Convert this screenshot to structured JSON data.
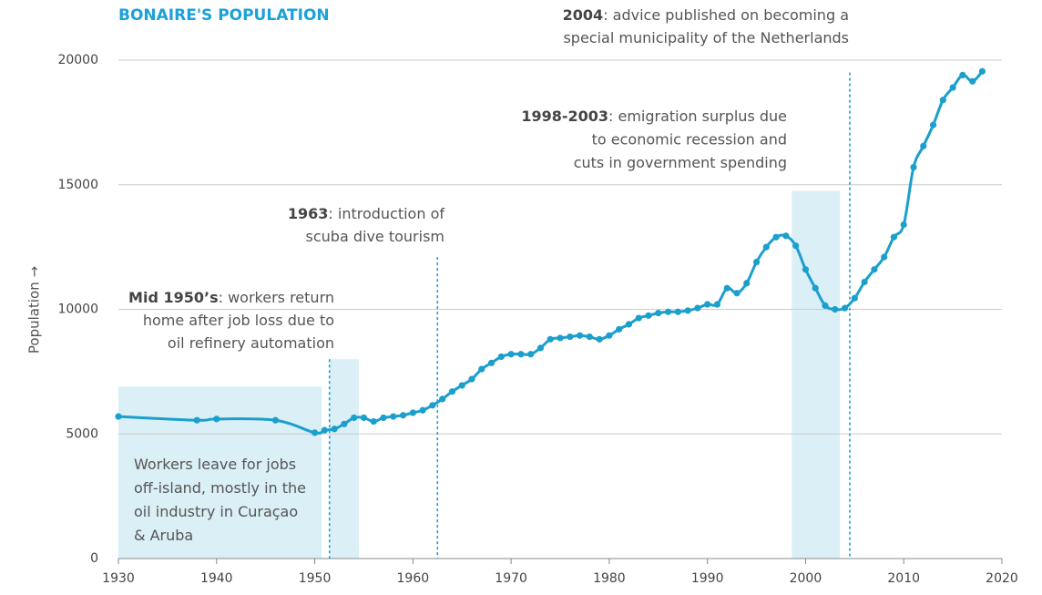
{
  "chart_data": {
    "type": "line",
    "title": "BONAIRE'S POPULATION",
    "y_label": "Population →",
    "color": "#1b9fcc",
    "shade_color": "#d4ecf5",
    "grid": true,
    "xlim": [
      1930,
      2020
    ],
    "xticks": [
      1930,
      1940,
      1950,
      1960,
      1970,
      1980,
      1990,
      2000,
      2010,
      2020
    ],
    "ylim": [
      0,
      20000
    ],
    "yticks": [
      0,
      5000,
      10000,
      15000,
      20000
    ],
    "x": [
      1930,
      1938,
      1940,
      1946,
      1950,
      1951,
      1952,
      1953,
      1954,
      1955,
      1956,
      1957,
      1958,
      1959,
      1960,
      1961,
      1962,
      1963,
      1964,
      1965,
      1966,
      1967,
      1968,
      1969,
      1970,
      1971,
      1972,
      1973,
      1974,
      1975,
      1976,
      1977,
      1978,
      1979,
      1980,
      1981,
      1982,
      1983,
      1984,
      1985,
      1986,
      1987,
      1988,
      1989,
      1990,
      1991,
      1992,
      1993,
      1994,
      1995,
      1996,
      1997,
      1998,
      1999,
      2000,
      2001,
      2002,
      2003,
      2004,
      2005,
      2006,
      2007,
      2008,
      2009,
      2010,
      2011,
      2012,
      2013,
      2014,
      2015,
      2016,
      2017,
      2018
    ],
    "series": [
      {
        "name": "Population",
        "color": "#1b9fcc",
        "values": [
          5700,
          5550,
          5600,
          5550,
          5050,
          5150,
          5200,
          5400,
          5650,
          5650,
          5500,
          5650,
          5700,
          5750,
          5850,
          5950,
          6150,
          6400,
          6700,
          6950,
          7200,
          7600,
          7850,
          8100,
          8200,
          8200,
          8200,
          8450,
          8800,
          8850,
          8900,
          8950,
          8900,
          8800,
          8950,
          9200,
          9400,
          9650,
          9750,
          9850,
          9900,
          9900,
          9950,
          10050,
          10200,
          10200,
          10850,
          10650,
          11050,
          11900,
          12500,
          12900,
          12950,
          12550,
          11600,
          10850,
          10150,
          10000,
          10050,
          10450,
          11100,
          11600,
          12100,
          12900,
          13400,
          15700,
          16550,
          17400,
          18400,
          18900,
          19400,
          19150,
          19550
        ]
      }
    ],
    "shaded_ranges": [
      {
        "xlim": [
          1930,
          1950.7
        ],
        "top": 6900
      },
      {
        "xlim": [
          1951.5,
          1954.5
        ],
        "top": 8000
      },
      {
        "xlim": [
          1998.6,
          2003.5
        ],
        "top": 14750
      }
    ],
    "markers": [
      {
        "x": 1951.5,
        "top": 8000
      },
      {
        "x": 1962.5,
        "top": 12100
      },
      {
        "x": 2004.5,
        "top": 19500
      }
    ],
    "annotations": [
      {
        "bold": "2004",
        "lines": [
          ": advice published on becoming a",
          "special municipality of the Netherlands"
        ]
      },
      {
        "bold": "1998-2003",
        "lines": [
          ": emigration surplus due",
          "to economic recession and",
          "cuts in government spending"
        ]
      },
      {
        "bold": "1963",
        "lines": [
          ": introduction of",
          "scuba dive tourism"
        ]
      },
      {
        "bold": "Mid 1950’s",
        "lines": [
          ": workers return",
          "home after job loss due to",
          "oil refinery automation"
        ]
      },
      {
        "lines": [
          "Workers leave for jobs",
          "off-island, mostly in the",
          "oil industry in Curaçao",
          "& Aruba"
        ]
      }
    ]
  }
}
